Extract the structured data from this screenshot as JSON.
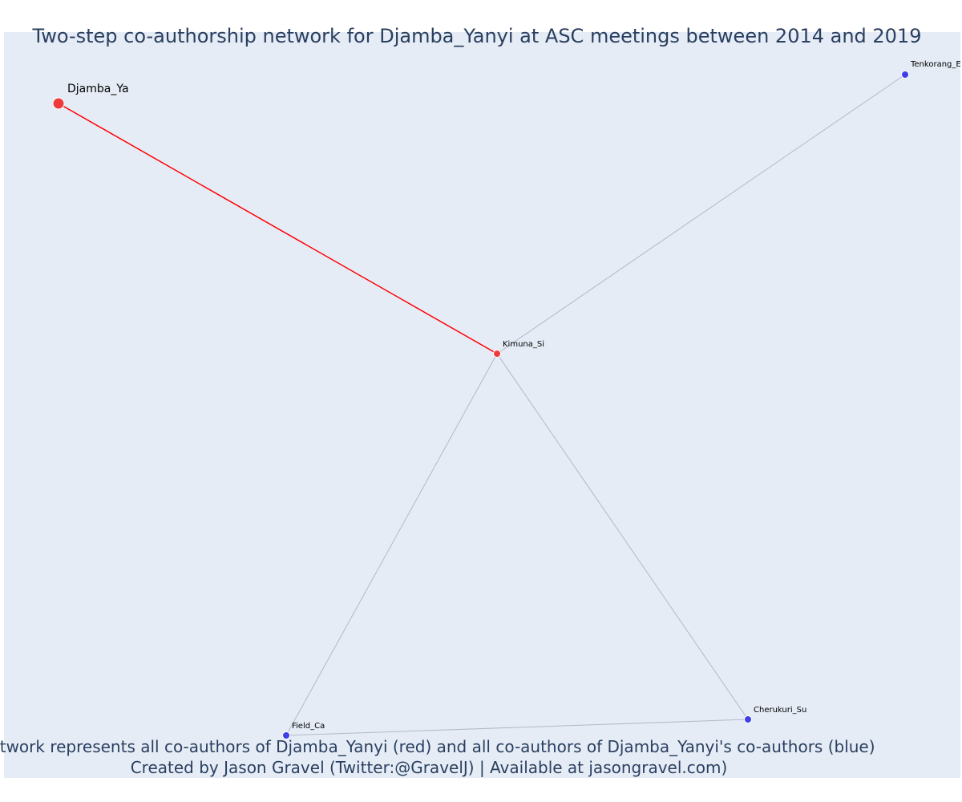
{
  "title": "Two-step co-authorship network for Djamba_Yanyi at ASC meetings between 2014 and 2019",
  "caption": {
    "line1": "Network represents all co-authors of Djamba_Yanyi (red) and all co-authors of Djamba_Yanyi's co-authors (blue)",
    "line2": "Created by Jason Gravel (Twitter:@GravelJ) | Available at jasongravel.com)"
  },
  "colors": {
    "plot_background": "#e5ecf6",
    "first_degree": "#ef3b3b",
    "second_degree": "#3f3fe6",
    "focal_edge": "#ff0000",
    "other_edge": "#b4b8c8",
    "text": "#2a3f5f"
  },
  "nodes": [
    {
      "id": "djamba",
      "label": "Djamba_Ya",
      "group": "focal"
    },
    {
      "id": "kimuna",
      "label": "Kimuna_Si",
      "group": "first"
    },
    {
      "id": "tenkorang",
      "label": "Tenkorang_E",
      "group": "second"
    },
    {
      "id": "field",
      "label": "Field_Ca",
      "group": "second"
    },
    {
      "id": "cherukuri",
      "label": "Cherukuri_Su",
      "group": "second"
    }
  ],
  "edges": [
    {
      "source": "djamba",
      "target": "kimuna",
      "type": "focal"
    },
    {
      "source": "kimuna",
      "target": "tenkorang",
      "type": "other"
    },
    {
      "source": "kimuna",
      "target": "field",
      "type": "other"
    },
    {
      "source": "kimuna",
      "target": "cherukuri",
      "type": "other"
    },
    {
      "source": "field",
      "target": "cherukuri",
      "type": "other"
    }
  ]
}
